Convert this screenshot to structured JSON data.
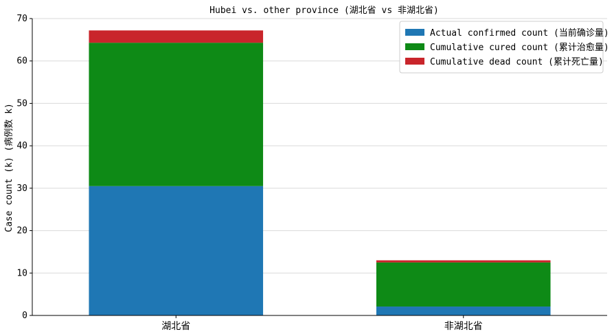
{
  "chart_data": {
    "type": "bar",
    "stacked": true,
    "title": "Hubei vs. other province (湖北省 vs 非湖北省)",
    "xlabel": "",
    "ylabel": "Case count (k) (病例数 k)",
    "categories": [
      "湖北省",
      "非湖北省"
    ],
    "series": [
      {
        "name": "Actual confirmed count (当前确诊量)",
        "color": "#1f77b4",
        "values": [
          30.5,
          2.1
        ]
      },
      {
        "name": "Cumulative cured count (累计治愈量)",
        "color": "#0e8a16",
        "values": [
          33.8,
          10.4
        ]
      },
      {
        "name": "Cumulative dead count (累计死亡量)",
        "color": "#c9252b",
        "values": [
          2.9,
          0.5
        ]
      }
    ],
    "ylim": [
      0,
      70
    ],
    "yticks": [
      0,
      10,
      20,
      30,
      40,
      50,
      60,
      70
    ],
    "grid": "y",
    "legend_position": "top-right"
  }
}
